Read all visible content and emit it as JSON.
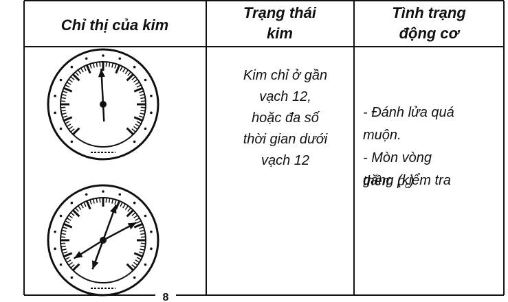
{
  "table": {
    "header": [
      [
        "Chỉ thị của kim"
      ],
      [
        "Trạng thái",
        "kim"
      ],
      [
        "Tình trạng",
        "động cơ"
      ]
    ],
    "state_lines": [
      "Kim chỉ ở gần",
      "vạch 12,",
      "hoặc đa số",
      "thời gian dưới",
      "vạch 12"
    ],
    "engine_lines": [
      "- Đánh lửa quá",
      "muộn.",
      "- Mòn vòng",
      "găng (kiểm tra"
    ],
    "engine_last": {
      "text": "thêm p",
      "subscript": "c",
      "close": ")"
    }
  },
  "page_number": "8"
}
